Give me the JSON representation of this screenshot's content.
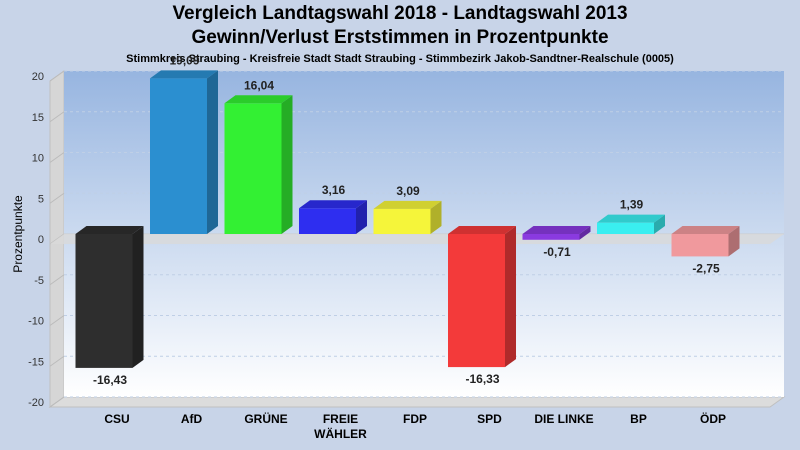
{
  "title": "Vergleich Landtagswahl 2018 - Landtagswahl 2013",
  "subtitle": "Gewinn/Verlust Erststimmen in Prozentpunkte",
  "subtitle2": "Stimmkreis Straubing - Kreisfreie Stadt Stadt Straubing - Stimmbezirk Jakob-Sandtner-Realschule (0005)",
  "chart_data": {
    "type": "bar",
    "title": "Vergleich Landtagswahl 2018 - Landtagswahl 2013",
    "subtitle": "Gewinn/Verlust Erststimmen in Prozentpunkte",
    "ylabel": "Prozentpunkte",
    "xlabel": "",
    "ylim": [
      -20,
      20
    ],
    "yticks": [
      20,
      15,
      10,
      5,
      0,
      -5,
      -10,
      -15,
      -20
    ],
    "grid": true,
    "categories": [
      "CSU",
      "AfD",
      "GRÜNE",
      "FREIE WÄHLER",
      "FDP",
      "SPD",
      "DIE LINKE",
      "BP",
      "ÖDP"
    ],
    "category_lines": [
      [
        "CSU"
      ],
      [
        "AfD"
      ],
      [
        "GRÜNE"
      ],
      [
        "FREIE",
        "WÄHLER"
      ],
      [
        "FDP"
      ],
      [
        "SPD"
      ],
      [
        "DIE LINKE"
      ],
      [
        "BP"
      ],
      [
        "ÖDP"
      ]
    ],
    "values": [
      -16.43,
      19.09,
      16.04,
      3.16,
      3.09,
      -16.33,
      -0.71,
      1.39,
      -2.75
    ],
    "value_labels": [
      "-16,43",
      "19,09",
      "16,04",
      "3,16",
      "3,09",
      "-16,33",
      "-0,71",
      "1,39",
      "-2,75"
    ],
    "colors": [
      "#2e2e2e",
      "#2b8fd0",
      "#33f033",
      "#2e2ef0",
      "#f5f53a",
      "#f33a3a",
      "#8a3ae0",
      "#3aeef0",
      "#f0999d"
    ]
  }
}
